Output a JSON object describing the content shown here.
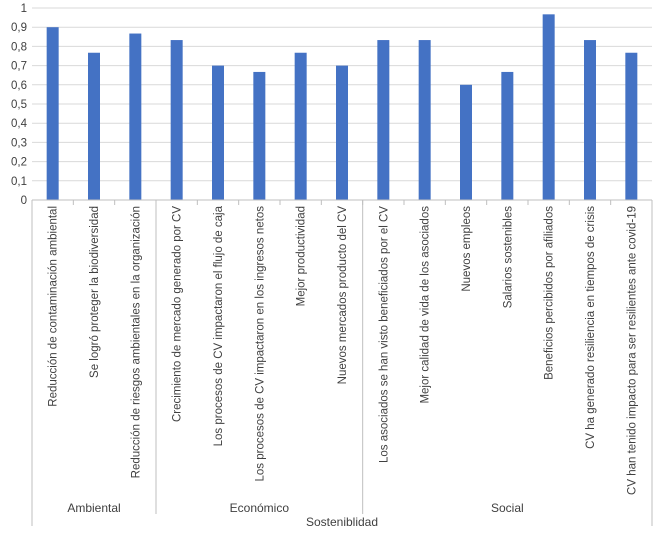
{
  "chart_data": {
    "type": "bar",
    "title": "",
    "xlabel": "Sosteniblidad",
    "ylabel": "",
    "ylim": [
      0,
      1
    ],
    "yticks": [
      0,
      0.1,
      0.2,
      0.3,
      0.4,
      0.5,
      0.6,
      0.7,
      0.8,
      0.9,
      1
    ],
    "ytick_labels": [
      "0",
      "0,1",
      "0,2",
      "0,3",
      "0,4",
      "0,5",
      "0,6",
      "0,7",
      "0,8",
      "0,9",
      "1"
    ],
    "grid": true,
    "legend": "none",
    "bar_color": "#4472C4",
    "groups": [
      {
        "label": "Ambiental",
        "start": 0,
        "count": 3
      },
      {
        "label": "Económico",
        "start": 3,
        "count": 5
      },
      {
        "label": "Social",
        "start": 8,
        "count": 7
      }
    ],
    "categories": [
      "Reducción de contaminación ambiental",
      "Se logró proteger la biodiversidad",
      "Reducción de riesgos ambientales en la organización",
      "Crecimiento de mercado generado por CV",
      "Los procesos de CV impactaron el flujo de caja",
      "Los procesos de CV impactaron en los ingresos netos",
      "Mejor productividad",
      "Nuevos mercados producto del CV",
      "Los asociados se han visto beneficiados por el CV",
      "Mejor calidad de vida de los asociados",
      "Nuevos empleos",
      "Salarios sostenibles",
      "Beneficios percibidos por afiliados",
      "CV ha generado resiliencia en tiempos de crisis",
      "CV han tenido impacto para ser resilientes ante covid-19"
    ],
    "values": [
      0.9,
      0.767,
      0.867,
      0.833,
      0.7,
      0.667,
      0.767,
      0.7,
      0.833,
      0.833,
      0.6,
      0.667,
      0.967,
      0.833,
      0.767
    ]
  }
}
